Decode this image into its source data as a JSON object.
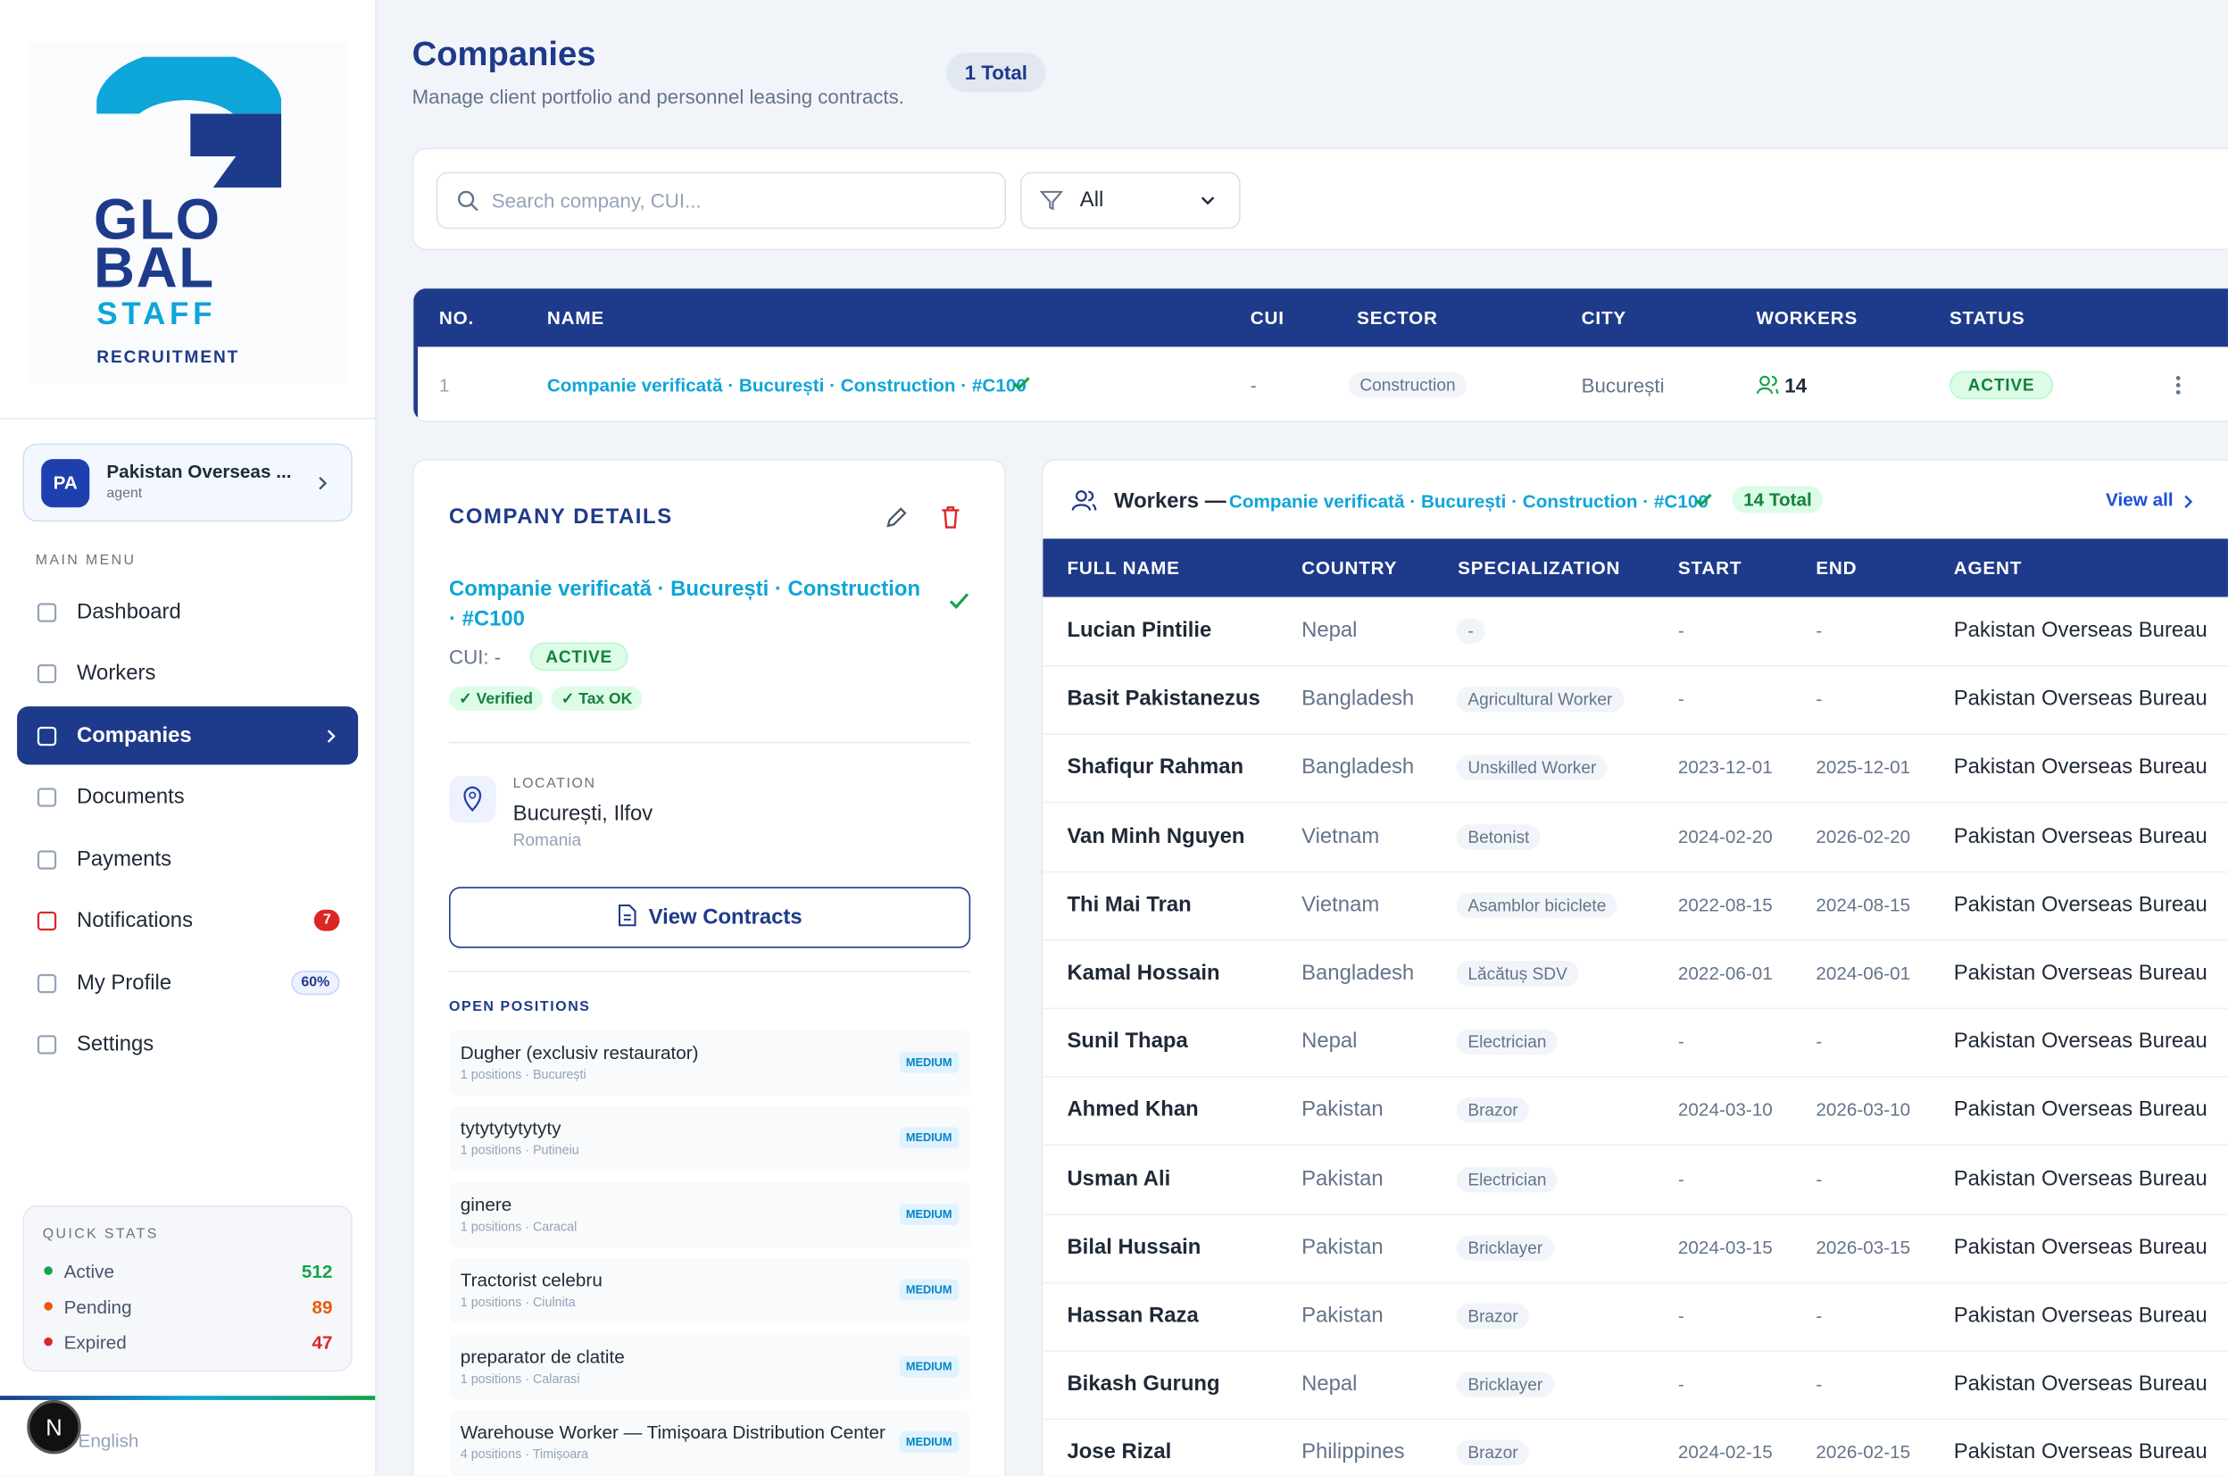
{
  "sidebar": {
    "logo": {
      "line1": "GLO",
      "line2": "BAL",
      "line3": "STAFF",
      "line4": "RECRUITMENT"
    },
    "user": {
      "initials": "PA",
      "name": "Pakistan Overseas ...",
      "role": "agent"
    },
    "menu_label": "MAIN MENU",
    "menu": [
      {
        "label": "Dashboard"
      },
      {
        "label": "Workers"
      },
      {
        "label": "Companies",
        "active": true
      },
      {
        "label": "Documents"
      },
      {
        "label": "Payments"
      },
      {
        "label": "Notifications",
        "badge": "7"
      },
      {
        "label": "My Profile",
        "badge": "60%"
      },
      {
        "label": "Settings"
      }
    ],
    "quick_stats": {
      "title": "QUICK STATS",
      "items": [
        {
          "label": "Active",
          "value": 512,
          "color": "#16a34a"
        },
        {
          "label": "Pending",
          "value": 89,
          "color": "#ea580c"
        },
        {
          "label": "Expired",
          "value": 47,
          "color": "#dc2626"
        }
      ]
    },
    "avatar": "N",
    "language": "English"
  },
  "header": {
    "title": "Companies",
    "subtitle": "Manage client portfolio and personnel leasing contracts.",
    "total": "1 Total"
  },
  "filters": {
    "search_placeholder": "Search company, CUI...",
    "filter": "All"
  },
  "companies_table": {
    "columns": [
      "NO.",
      "NAME",
      "CUI",
      "SECTOR",
      "CITY",
      "WORKERS",
      "STATUS"
    ],
    "rows": [
      [
        "1",
        "Companie verificată · București · Construction · #C100",
        "-",
        "Construction",
        "București",
        "14",
        "ACTIVE"
      ]
    ]
  },
  "company_details": {
    "title": "COMPANY DETAILS",
    "name": "Companie verificată · București · Construction · #C100",
    "cui": "CUI: -",
    "status": "ACTIVE",
    "tags": [
      "✓ Verified",
      "✓ Tax OK"
    ],
    "location_label": "LOCATION",
    "location": "București, Ilfov",
    "country": "Romania",
    "button": "View Contracts",
    "positions_title": "OPEN POSITIONS",
    "positions": [
      {
        "title": "Dugher (exclusiv restaurator)",
        "meta": "1 positions · București",
        "level": "MEDIUM"
      },
      {
        "title": "tytytytytytyty",
        "meta": "1 positions · Putineiu",
        "level": "MEDIUM"
      },
      {
        "title": "ginere",
        "meta": "1 positions · Caracal",
        "level": "MEDIUM"
      },
      {
        "title": "Tractorist celebru",
        "meta": "1 positions · Ciulnita",
        "level": "MEDIUM"
      },
      {
        "title": "preparator de clatite",
        "meta": "1 positions · Calarasi",
        "level": "MEDIUM"
      },
      {
        "title": "Warehouse Worker — Timișoara Distribution Center",
        "meta": "4 positions · Timișoara",
        "level": "MEDIUM"
      }
    ]
  },
  "workers_panel": {
    "title": "Workers —",
    "company": "Companie verificată · București · Construction · #C100",
    "total": "14 Total",
    "view_all": "View all",
    "columns": [
      "FULL NAME",
      "COUNTRY",
      "SPECIALIZATION",
      "START",
      "END",
      "AGENT"
    ],
    "rows": [
      [
        "Lucian Pintilie",
        "Nepal",
        "-",
        "-",
        "-",
        "Pakistan Overseas Bureau"
      ],
      [
        "Basit Pakistanezus",
        "Bangladesh",
        "Agricultural Worker",
        "-",
        "-",
        "Pakistan Overseas Bureau"
      ],
      [
        "Shafiqur Rahman",
        "Bangladesh",
        "Unskilled Worker",
        "2023-12-01",
        "2025-12-01",
        "Pakistan Overseas Bureau"
      ],
      [
        "Van Minh Nguyen",
        "Vietnam",
        "Betonist",
        "2024-02-20",
        "2026-02-20",
        "Pakistan Overseas Bureau"
      ],
      [
        "Thi Mai Tran",
        "Vietnam",
        "Asamblor biciclete",
        "2022-08-15",
        "2024-08-15",
        "Pakistan Overseas Bureau"
      ],
      [
        "Kamal Hossain",
        "Bangladesh",
        "Lăcătuș SDV",
        "2022-06-01",
        "2024-06-01",
        "Pakistan Overseas Bureau"
      ],
      [
        "Sunil Thapa",
        "Nepal",
        "Electrician",
        "-",
        "-",
        "Pakistan Overseas Bureau"
      ],
      [
        "Ahmed Khan",
        "Pakistan",
        "Brazor",
        "2024-03-10",
        "2026-03-10",
        "Pakistan Overseas Bureau"
      ],
      [
        "Usman Ali",
        "Pakistan",
        "Electrician",
        "-",
        "-",
        "Pakistan Overseas Bureau"
      ],
      [
        "Bilal Hussain",
        "Pakistan",
        "Bricklayer",
        "2024-03-15",
        "2026-03-15",
        "Pakistan Overseas Bureau"
      ],
      [
        "Hassan Raza",
        "Pakistan",
        "Brazor",
        "-",
        "-",
        "Pakistan Overseas Bureau"
      ],
      [
        "Bikash Gurung",
        "Nepal",
        "Bricklayer",
        "-",
        "-",
        "Pakistan Overseas Bureau"
      ],
      [
        "Jose Rizal",
        "Philippines",
        "Brazor",
        "2024-02-15",
        "2026-02-15",
        "Pakistan Overseas Bureau"
      ]
    ]
  }
}
